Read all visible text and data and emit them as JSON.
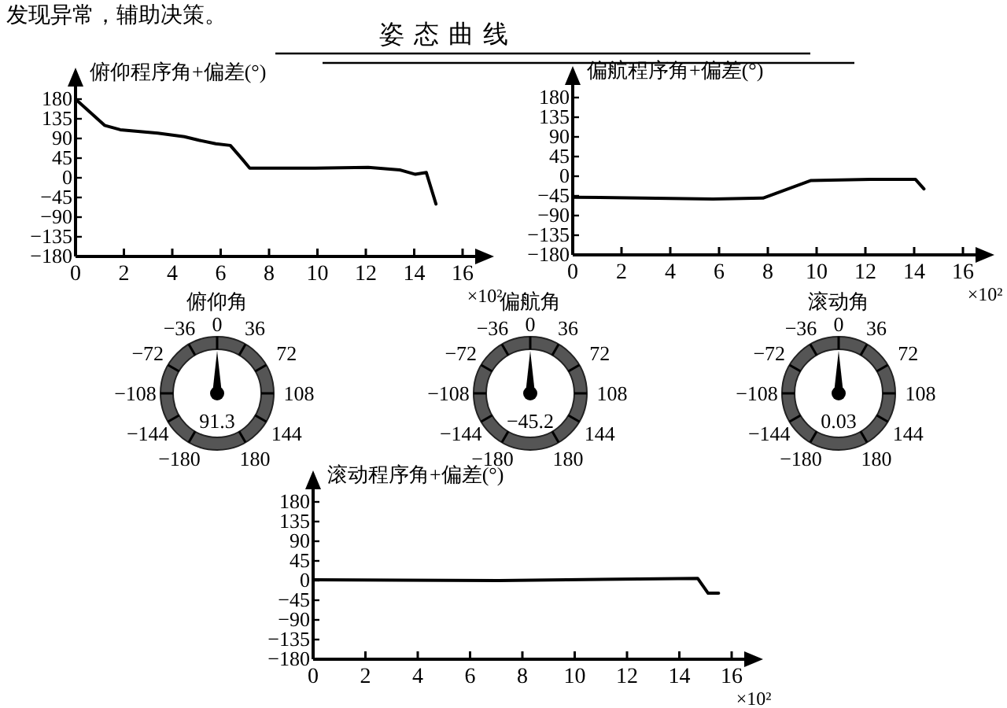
{
  "chart_data": [
    {
      "type": "line",
      "title": "姿态曲线",
      "annotations": [
        "发现异常，辅助决策。"
      ],
      "ylabel": "俯仰程序角+偏差(°)",
      "xlabel": "×10²",
      "xlim": [
        0,
        16
      ],
      "xticks": [
        0,
        2,
        4,
        6,
        8,
        10,
        12,
        14,
        16
      ],
      "ylim": [
        -180,
        180
      ],
      "yticks": [
        180,
        135,
        90,
        45,
        0,
        -45,
        -90,
        -135,
        -180
      ],
      "color": "#000000",
      "x": [
        0,
        1.2,
        1.85,
        3.4,
        4.5,
        5.1,
        5.8,
        6.4,
        6.9,
        7.2,
        9.9,
        12.1,
        13.4,
        14.05,
        14.5,
        14.6,
        14.9
      ],
      "values": [
        180,
        120,
        110,
        102,
        94,
        86,
        78,
        74,
        42,
        22,
        22,
        24,
        18,
        8,
        12,
        -6,
        -60
      ]
    },
    {
      "type": "line",
      "ylabel": "偏航程序角+偏差(°)",
      "xlabel": "×10²",
      "xlim": [
        0,
        16
      ],
      "xticks": [
        0,
        2,
        4,
        6,
        8,
        10,
        12,
        14,
        16
      ],
      "ylim": [
        -180,
        180
      ],
      "yticks": [
        180,
        135,
        90,
        45,
        0,
        -45,
        -90,
        -135,
        -180
      ],
      "color": "#000000",
      "x": [
        0,
        5.75,
        7.8,
        9.75,
        12.2,
        14.05,
        14.4
      ],
      "values": [
        -48,
        -52,
        -50,
        -10,
        -7,
        -7,
        -29
      ]
    },
    {
      "type": "other",
      "title": "俯仰角",
      "categories": [
        "−180",
        "−144",
        "−108",
        "−72",
        "−36",
        "0",
        "36",
        "72",
        "108",
        "144",
        "180"
      ],
      "needle": "0",
      "annotations": [
        "91.3"
      ]
    },
    {
      "type": "other",
      "title": "偏航角",
      "categories": [
        "−180",
        "−144",
        "−108",
        "−72",
        "−36",
        "0",
        "36",
        "72",
        "108",
        "144",
        "180"
      ],
      "needle": "0",
      "annotations": [
        "−45.2"
      ]
    },
    {
      "type": "other",
      "title": "滚动角",
      "categories": [
        "−180",
        "−144",
        "−108",
        "−72",
        "−36",
        "0",
        "36",
        "72",
        "108",
        "144",
        "180"
      ],
      "needle": "0",
      "annotations": [
        "0.03"
      ]
    },
    {
      "type": "line",
      "ylabel": "滚动程序角+偏差(°)",
      "xlabel": "×10²",
      "xlim": [
        0,
        16
      ],
      "xticks": [
        0,
        2,
        4,
        6,
        8,
        10,
        12,
        14,
        16
      ],
      "ylim": [
        -180,
        180
      ],
      "yticks": [
        180,
        135,
        90,
        45,
        0,
        -45,
        -90,
        -135,
        -180
      ],
      "color": "#000000",
      "x": [
        0,
        7.1,
        14.7,
        15.1,
        15.5
      ],
      "values": [
        2,
        0,
        5,
        -29,
        -29
      ]
    }
  ]
}
